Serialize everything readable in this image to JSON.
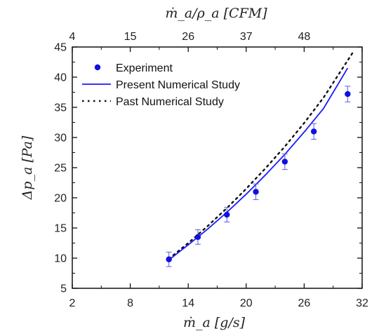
{
  "chart_data": {
    "type": "scatter",
    "xlabel": "ṁ_a [g/s]",
    "ylabel": "Δp_a [Pa]",
    "top_xlabel": "ṁ_a/ρ_a [CFM]",
    "xlim": [
      2,
      32
    ],
    "ylim": [
      5,
      45
    ],
    "x_ticks": [
      "2",
      "8",
      "14",
      "20",
      "26",
      "32"
    ],
    "y_ticks": [
      "5",
      "10",
      "15",
      "20",
      "25",
      "30",
      "35",
      "40",
      "45"
    ],
    "top_ticks": [
      {
        "label": "4",
        "x": 2
      },
      {
        "label": "15",
        "x": 8
      },
      {
        "label": "26",
        "x": 14
      },
      {
        "label": "37",
        "x": 20
      },
      {
        "label": "48",
        "x": 26
      }
    ],
    "grid": false,
    "legend_position": "top-left",
    "series": [
      {
        "name": "Experiment",
        "style": "markers-with-errorbars",
        "color": "#1010e0",
        "x": [
          12.0,
          15.0,
          18.0,
          21.0,
          24.0,
          27.0,
          30.5
        ],
        "y": [
          9.8,
          13.5,
          17.2,
          21.0,
          26.0,
          31.0,
          37.2
        ],
        "y_err": [
          1.2,
          1.2,
          1.2,
          1.3,
          1.3,
          1.3,
          1.3
        ],
        "x_err": [
          0.3,
          0.3,
          0.3,
          0.3,
          0.3,
          0.3,
          0.3
        ]
      },
      {
        "name": "Present Numerical Study",
        "style": "solid-line",
        "color": "#1a1aff",
        "x": [
          12.0,
          14.0,
          16.0,
          18.0,
          20.0,
          22.0,
          24.0,
          26.0,
          28.0,
          30.5
        ],
        "y": [
          9.7,
          12.2,
          14.8,
          17.6,
          20.6,
          23.8,
          27.2,
          30.9,
          34.8,
          41.5
        ]
      },
      {
        "name": "Past Numerical Study",
        "style": "dotted-line",
        "color": "#111111",
        "x": [
          12.0,
          14.0,
          16.0,
          18.0,
          20.0,
          22.0,
          24.0,
          26.0,
          28.0,
          31.0
        ],
        "y": [
          9.9,
          12.5,
          15.3,
          18.3,
          21.5,
          24.9,
          28.5,
          32.4,
          36.6,
          44.0
        ]
      }
    ]
  }
}
